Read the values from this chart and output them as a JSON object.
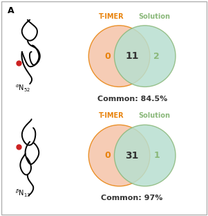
{
  "panel_label": "A",
  "background_color": "#ffffff",
  "border_color": "#b0b0b0",
  "venn1": {
    "title_left": "T-IMER",
    "title_right": "Solution",
    "title_left_color": "#e8820a",
    "title_right_color": "#8ab87a",
    "left_only": "0",
    "intersection": "11",
    "right_only": "2",
    "common_text": "Common: 84.5%",
    "left_color": "#f5c4a8",
    "right_color": "#b8dfd0",
    "left_edge": "#e8820a",
    "right_edge": "#8ab87a"
  },
  "venn2": {
    "title_left": "T-IMER",
    "title_right": "Solution",
    "title_left_color": "#e8820a",
    "title_right_color": "#8ab87a",
    "left_only": "0",
    "intersection": "31",
    "right_only": "1",
    "common_text": "Common: 97%",
    "left_color": "#f5c4a8",
    "right_color": "#b8dfd0",
    "left_edge": "#e8820a",
    "right_edge": "#8ab87a"
  },
  "number_fontsize": 9,
  "title_fontsize": 7,
  "common_fontsize": 8,
  "label_fontsize": 7
}
